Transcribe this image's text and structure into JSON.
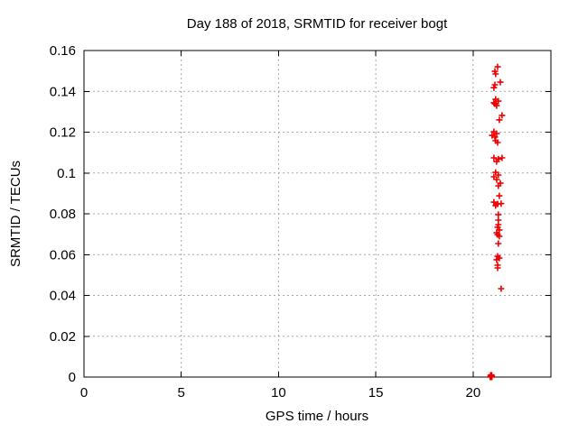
{
  "chart_data": {
    "type": "scatter",
    "title": "Day 188 of 2018, SRMTID for receiver bogt",
    "xlabel": "GPS time / hours",
    "ylabel": "SRMTID / TECUs",
    "xlim": [
      0,
      24
    ],
    "ylim": [
      0,
      0.16
    ],
    "grid": true,
    "legend": "none",
    "marker": "plus",
    "marker_color": "#ee0000",
    "grid_color": "#a8a8a8",
    "border_color": "#000000",
    "xticks": [
      {
        "v": 0,
        "label": "0"
      },
      {
        "v": 5,
        "label": "5"
      },
      {
        "v": 10,
        "label": "10"
      },
      {
        "v": 15,
        "label": "15"
      },
      {
        "v": 20,
        "label": "20"
      }
    ],
    "yticks": [
      {
        "v": 0,
        "label": "0"
      },
      {
        "v": 0.02,
        "label": "0.02"
      },
      {
        "v": 0.04,
        "label": "0.04"
      },
      {
        "v": 0.06,
        "label": "0.06"
      },
      {
        "v": 0.08,
        "label": "0.08"
      },
      {
        "v": 0.1,
        "label": "0.1"
      },
      {
        "v": 0.12,
        "label": "0.12"
      },
      {
        "v": 0.14,
        "label": "0.14"
      },
      {
        "v": 0.16,
        "label": "0.16"
      }
    ],
    "series": [
      {
        "name": "SRMTID",
        "points": [
          [
            21.26,
            0.152
          ],
          [
            21.12,
            0.1498
          ],
          [
            21.16,
            0.1485
          ],
          [
            21.4,
            0.1445
          ],
          [
            21.12,
            0.1432
          ],
          [
            21.07,
            0.1418
          ],
          [
            21.16,
            0.1361
          ],
          [
            21.3,
            0.1352
          ],
          [
            21.07,
            0.1344
          ],
          [
            21.12,
            0.1339
          ],
          [
            21.21,
            0.133
          ],
          [
            21.49,
            0.1282
          ],
          [
            21.35,
            0.126
          ],
          [
            21.07,
            0.1202
          ],
          [
            21.21,
            0.1193
          ],
          [
            20.98,
            0.1184
          ],
          [
            21.12,
            0.1176
          ],
          [
            21.16,
            0.1158
          ],
          [
            21.26,
            0.1149
          ],
          [
            21.07,
            0.1074
          ],
          [
            21.49,
            0.1074
          ],
          [
            21.3,
            0.1068
          ],
          [
            21.21,
            0.1056
          ],
          [
            21.16,
            0.1003
          ],
          [
            21.3,
            0.099
          ],
          [
            21.07,
            0.0981
          ],
          [
            21.21,
            0.0968
          ],
          [
            21.4,
            0.095
          ],
          [
            21.3,
            0.0937
          ],
          [
            21.35,
            0.0888
          ],
          [
            21.07,
            0.0857
          ],
          [
            21.44,
            0.085
          ],
          [
            21.26,
            0.0848
          ],
          [
            21.16,
            0.084
          ],
          [
            21.3,
            0.0796
          ],
          [
            21.3,
            0.0769
          ],
          [
            21.3,
            0.0747
          ],
          [
            21.26,
            0.0734
          ],
          [
            21.35,
            0.0721
          ],
          [
            21.21,
            0.0707
          ],
          [
            21.26,
            0.0698
          ],
          [
            21.35,
            0.069
          ],
          [
            21.3,
            0.0654
          ],
          [
            21.26,
            0.0592
          ],
          [
            21.35,
            0.0583
          ],
          [
            21.21,
            0.0575
          ],
          [
            21.26,
            0.0548
          ],
          [
            21.26,
            0.0535
          ],
          [
            21.44,
            0.0433
          ],
          [
            20.88,
            0.0
          ],
          [
            20.91,
            0.0005
          ],
          [
            20.93,
            0.0
          ],
          [
            20.95,
            0.0008
          ],
          [
            20.97,
            0.0
          ],
          [
            20.93,
            0.001
          ],
          [
            20.9,
            0.0008
          ],
          [
            20.96,
            0.0003
          ]
        ]
      }
    ]
  }
}
